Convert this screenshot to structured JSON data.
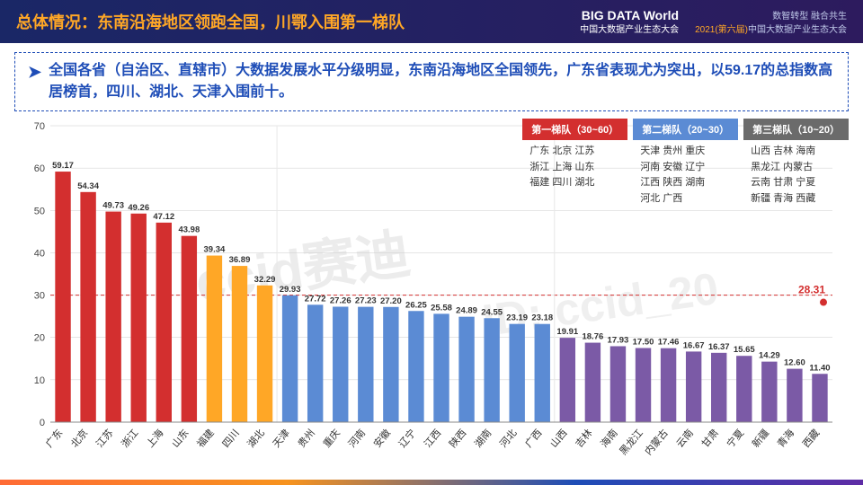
{
  "header": {
    "title": "总体情况：东南沿海地区领跑全国，川鄂入围第一梯队",
    "logo_big": "BIG DATA World",
    "logo_sub": "中国大数据产业生态大会",
    "right1": "数智转型 融合共生",
    "right2_pre": "2021(第六届)",
    "right2_post": "中国大数据产业生态大会"
  },
  "summary": "全国各省（自治区、直辖市）大数据发展水平分级明显，东南沿海地区全国领先，广东省表现尤为突出，以59.17的总指数高居榜首，四川、湖北、天津入围前十。",
  "watermark1": "ccid赛迪",
  "watermark2": "ID: ccid_20",
  "chart": {
    "type": "bar",
    "ylim": [
      0,
      70
    ],
    "ytick_step": 10,
    "ref_line": 30,
    "average": {
      "label": "28.31",
      "value": 28.31,
      "color": "#d32f2f"
    },
    "colors": {
      "tier1": "#d32f2f",
      "tier1b": "#ffa726",
      "tier2": "#5b8bd4",
      "tier3": "#7b5aa6",
      "axis": "#888",
      "grid": "#ccc",
      "ref": "#d32f2f"
    },
    "bars": [
      {
        "label": "广东",
        "value": 59.17,
        "tier": "tier1"
      },
      {
        "label": "北京",
        "value": 54.34,
        "tier": "tier1"
      },
      {
        "label": "江苏",
        "value": 49.73,
        "tier": "tier1"
      },
      {
        "label": "浙江",
        "value": 49.26,
        "tier": "tier1"
      },
      {
        "label": "上海",
        "value": 47.12,
        "tier": "tier1"
      },
      {
        "label": "山东",
        "value": 43.98,
        "tier": "tier1"
      },
      {
        "label": "福建",
        "value": 39.34,
        "tier": "tier1b"
      },
      {
        "label": "四川",
        "value": 36.89,
        "tier": "tier1b"
      },
      {
        "label": "湖北",
        "value": 32.29,
        "tier": "tier1b"
      },
      {
        "label": "天津",
        "value": 29.93,
        "tier": "tier2"
      },
      {
        "label": "贵州",
        "value": 27.72,
        "tier": "tier2"
      },
      {
        "label": "重庆",
        "value": 27.26,
        "tier": "tier2"
      },
      {
        "label": "河南",
        "value": 27.23,
        "tier": "tier2"
      },
      {
        "label": "安徽",
        "value": 27.2,
        "tier": "tier2"
      },
      {
        "label": "辽宁",
        "value": 26.25,
        "tier": "tier2"
      },
      {
        "label": "江西",
        "value": 25.58,
        "tier": "tier2"
      },
      {
        "label": "陕西",
        "value": 24.89,
        "tier": "tier2"
      },
      {
        "label": "湖南",
        "value": 24.55,
        "tier": "tier2"
      },
      {
        "label": "河北",
        "value": 23.19,
        "tier": "tier2"
      },
      {
        "label": "广西",
        "value": 23.18,
        "tier": "tier2"
      },
      {
        "label": "山西",
        "value": 19.91,
        "tier": "tier3"
      },
      {
        "label": "吉林",
        "value": 18.76,
        "tier": "tier3"
      },
      {
        "label": "海南",
        "value": 17.93,
        "tier": "tier3"
      },
      {
        "label": "黑龙江",
        "value": 17.5,
        "tier": "tier3"
      },
      {
        "label": "内蒙古",
        "value": 17.46,
        "tier": "tier3"
      },
      {
        "label": "云南",
        "value": 16.67,
        "tier": "tier3"
      },
      {
        "label": "甘肃",
        "value": 16.37,
        "tier": "tier3"
      },
      {
        "label": "宁夏",
        "value": 15.65,
        "tier": "tier3"
      },
      {
        "label": "新疆",
        "value": 14.29,
        "tier": "tier3"
      },
      {
        "label": "青海",
        "value": 12.6,
        "tier": "tier3"
      },
      {
        "label": "西藏",
        "value": 11.4,
        "tier": "tier3"
      }
    ]
  },
  "legend": [
    {
      "head": "第一梯队（30~60）",
      "color": "#d32f2f",
      "body": "广东 北京 江苏\n浙江 上海 山东\n福建 四川 湖北"
    },
    {
      "head": "第二梯队（20~30）",
      "color": "#5b8bd4",
      "body": "天津 贵州 重庆\n河南 安徽 辽宁\n江西 陕西 湖南\n河北 广西"
    },
    {
      "head": "第三梯队（10~20）",
      "color": "#6b6b6b",
      "body": "山西 吉林 海南\n黑龙江 内蒙古\n云南 甘肃 宁夏\n新疆 青海 西藏"
    }
  ]
}
